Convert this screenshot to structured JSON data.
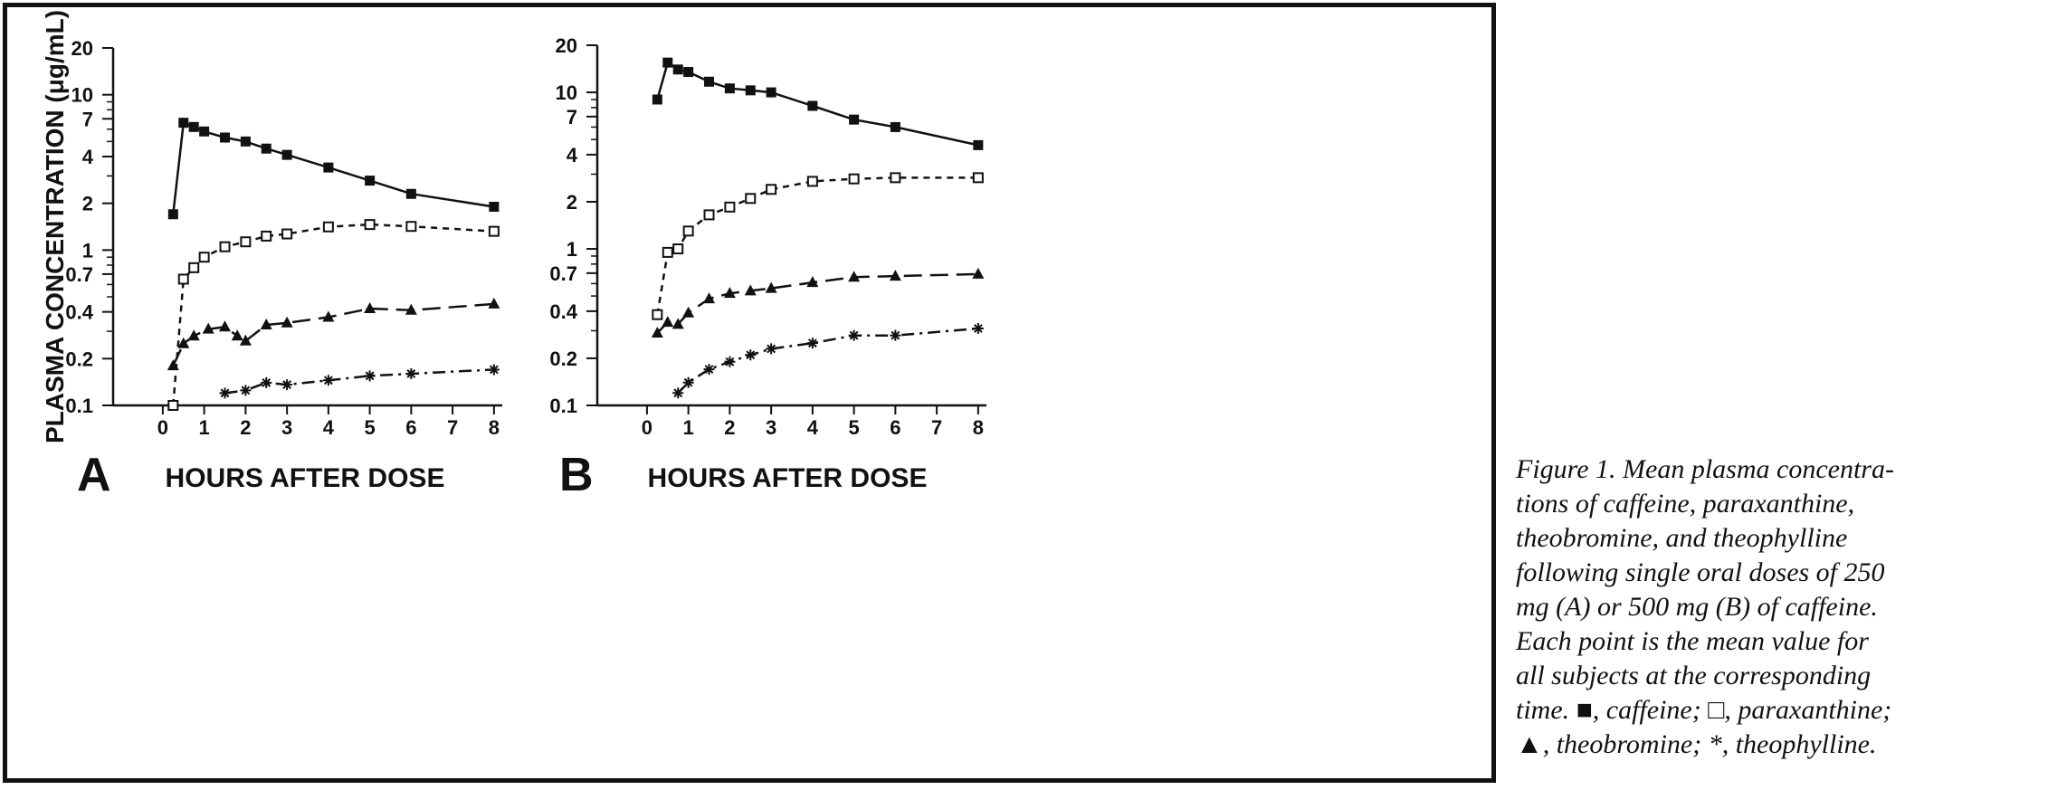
{
  "figure": {
    "caption_lines": [
      "Figure 1. Mean plasma concentra-",
      "tions of caffeine, paraxanthine,",
      "theobromine, and theophylline",
      "following single oral doses of 250",
      "mg (A) or 500 mg (B) of caffeine.",
      "Each point is the mean value for",
      "all subjects at the corresponding",
      "time. ■, caffeine; □, paraxanthine;",
      "▲, theobromine; *, theophylline."
    ]
  },
  "chart_data": [
    {
      "type": "line",
      "panel": "A",
      "xlabel": "HOURS AFTER DOSE",
      "ylabel": "PLASMA CONCENTRATION (μg/mL)",
      "xlim": [
        -1.2,
        8.2
      ],
      "x_ticks": [
        0,
        1,
        2,
        3,
        4,
        5,
        6,
        7,
        8
      ],
      "y_scale": "log",
      "ylim": [
        0.1,
        20
      ],
      "y_ticks": [
        0.1,
        0.2,
        0.4,
        0.7,
        1,
        2,
        4,
        7,
        10,
        20
      ],
      "y_tick_labels": [
        "0.1",
        "0.2",
        "0.4",
        "0.7",
        "1",
        "2",
        "4",
        "7",
        "10",
        "20"
      ],
      "grid": false,
      "series": [
        {
          "name": "caffeine",
          "marker": "filled-square",
          "line": "solid",
          "x": [
            0.25,
            0.5,
            0.75,
            1,
            1.5,
            2,
            2.5,
            3,
            4,
            5,
            6,
            8
          ],
          "y": [
            1.7,
            6.6,
            6.2,
            5.8,
            5.3,
            5.0,
            4.5,
            4.1,
            3.4,
            2.8,
            2.3,
            1.9
          ]
        },
        {
          "name": "paraxanthine",
          "marker": "open-square",
          "line": "short-dash",
          "x": [
            0.25,
            0.5,
            0.75,
            1,
            1.5,
            2,
            2.5,
            3,
            4,
            5,
            6,
            8
          ],
          "y": [
            0.1,
            0.65,
            0.77,
            0.9,
            1.05,
            1.13,
            1.23,
            1.27,
            1.41,
            1.46,
            1.42,
            1.32
          ]
        },
        {
          "name": "theobromine",
          "marker": "filled-triangle",
          "line": "long-dash",
          "segments": [
            {
              "x": [
                0.25,
                0.5,
                0.75,
                1.1,
                1.5,
                1.8
              ],
              "y": [
                0.18,
                0.25,
                0.28,
                0.31,
                0.32,
                0.28
              ]
            },
            {
              "x": [
                2,
                2.5,
                3,
                4,
                5,
                6,
                8
              ],
              "y": [
                0.26,
                0.33,
                0.34,
                0.37,
                0.42,
                0.41,
                0.45
              ]
            }
          ]
        },
        {
          "name": "theophylline",
          "marker": "asterisk",
          "line": "dash-dot",
          "x": [
            1.5,
            2,
            2.5,
            3,
            4,
            5,
            6,
            8
          ],
          "y": [
            0.12,
            0.125,
            0.14,
            0.136,
            0.145,
            0.155,
            0.16,
            0.17
          ]
        }
      ]
    },
    {
      "type": "line",
      "panel": "B",
      "xlabel": "HOURS AFTER DOSE",
      "ylabel": "",
      "xlim": [
        -1.2,
        8.2
      ],
      "x_ticks": [
        0,
        1,
        2,
        3,
        4,
        5,
        6,
        7,
        8
      ],
      "y_scale": "log",
      "ylim": [
        0.1,
        20
      ],
      "y_ticks": [
        0.1,
        0.2,
        0.4,
        0.7,
        1,
        2,
        4,
        7,
        10,
        20
      ],
      "y_tick_labels": [
        "0.1",
        "0.2",
        "0.4",
        "0.7",
        "1",
        "2",
        "4",
        "7",
        "10",
        "20"
      ],
      "grid": false,
      "series": [
        {
          "name": "caffeine",
          "marker": "filled-square",
          "line": "solid",
          "x": [
            0.25,
            0.5,
            0.75,
            1,
            1.5,
            2,
            2.5,
            3,
            4,
            5,
            6,
            8
          ],
          "y": [
            9.0,
            15.5,
            14.0,
            13.5,
            11.7,
            10.6,
            10.3,
            10.0,
            8.2,
            6.7,
            6.0,
            4.6
          ]
        },
        {
          "name": "paraxanthine",
          "marker": "open-square",
          "line": "short-dash",
          "x": [
            0.25,
            0.5,
            0.75,
            1,
            1.5,
            2,
            2.5,
            3,
            4,
            5,
            6,
            8
          ],
          "y": [
            0.38,
            0.95,
            1.0,
            1.3,
            1.65,
            1.85,
            2.1,
            2.4,
            2.7,
            2.8,
            2.85,
            2.85
          ]
        },
        {
          "name": "theobromine",
          "marker": "filled-triangle",
          "line": "long-dash",
          "x": [
            0.25,
            0.5,
            0.75,
            1,
            1.5,
            2,
            2.5,
            3,
            4,
            5,
            6,
            8
          ],
          "y": [
            0.29,
            0.34,
            0.33,
            0.39,
            0.48,
            0.52,
            0.54,
            0.56,
            0.61,
            0.66,
            0.67,
            0.69
          ]
        },
        {
          "name": "theophylline",
          "marker": "asterisk",
          "line": "dash-dot",
          "x": [
            0.75,
            1,
            1.5,
            2,
            2.5,
            3,
            4,
            5,
            6,
            8
          ],
          "y": [
            0.12,
            0.14,
            0.17,
            0.19,
            0.21,
            0.23,
            0.25,
            0.28,
            0.28,
            0.31
          ]
        }
      ]
    }
  ]
}
